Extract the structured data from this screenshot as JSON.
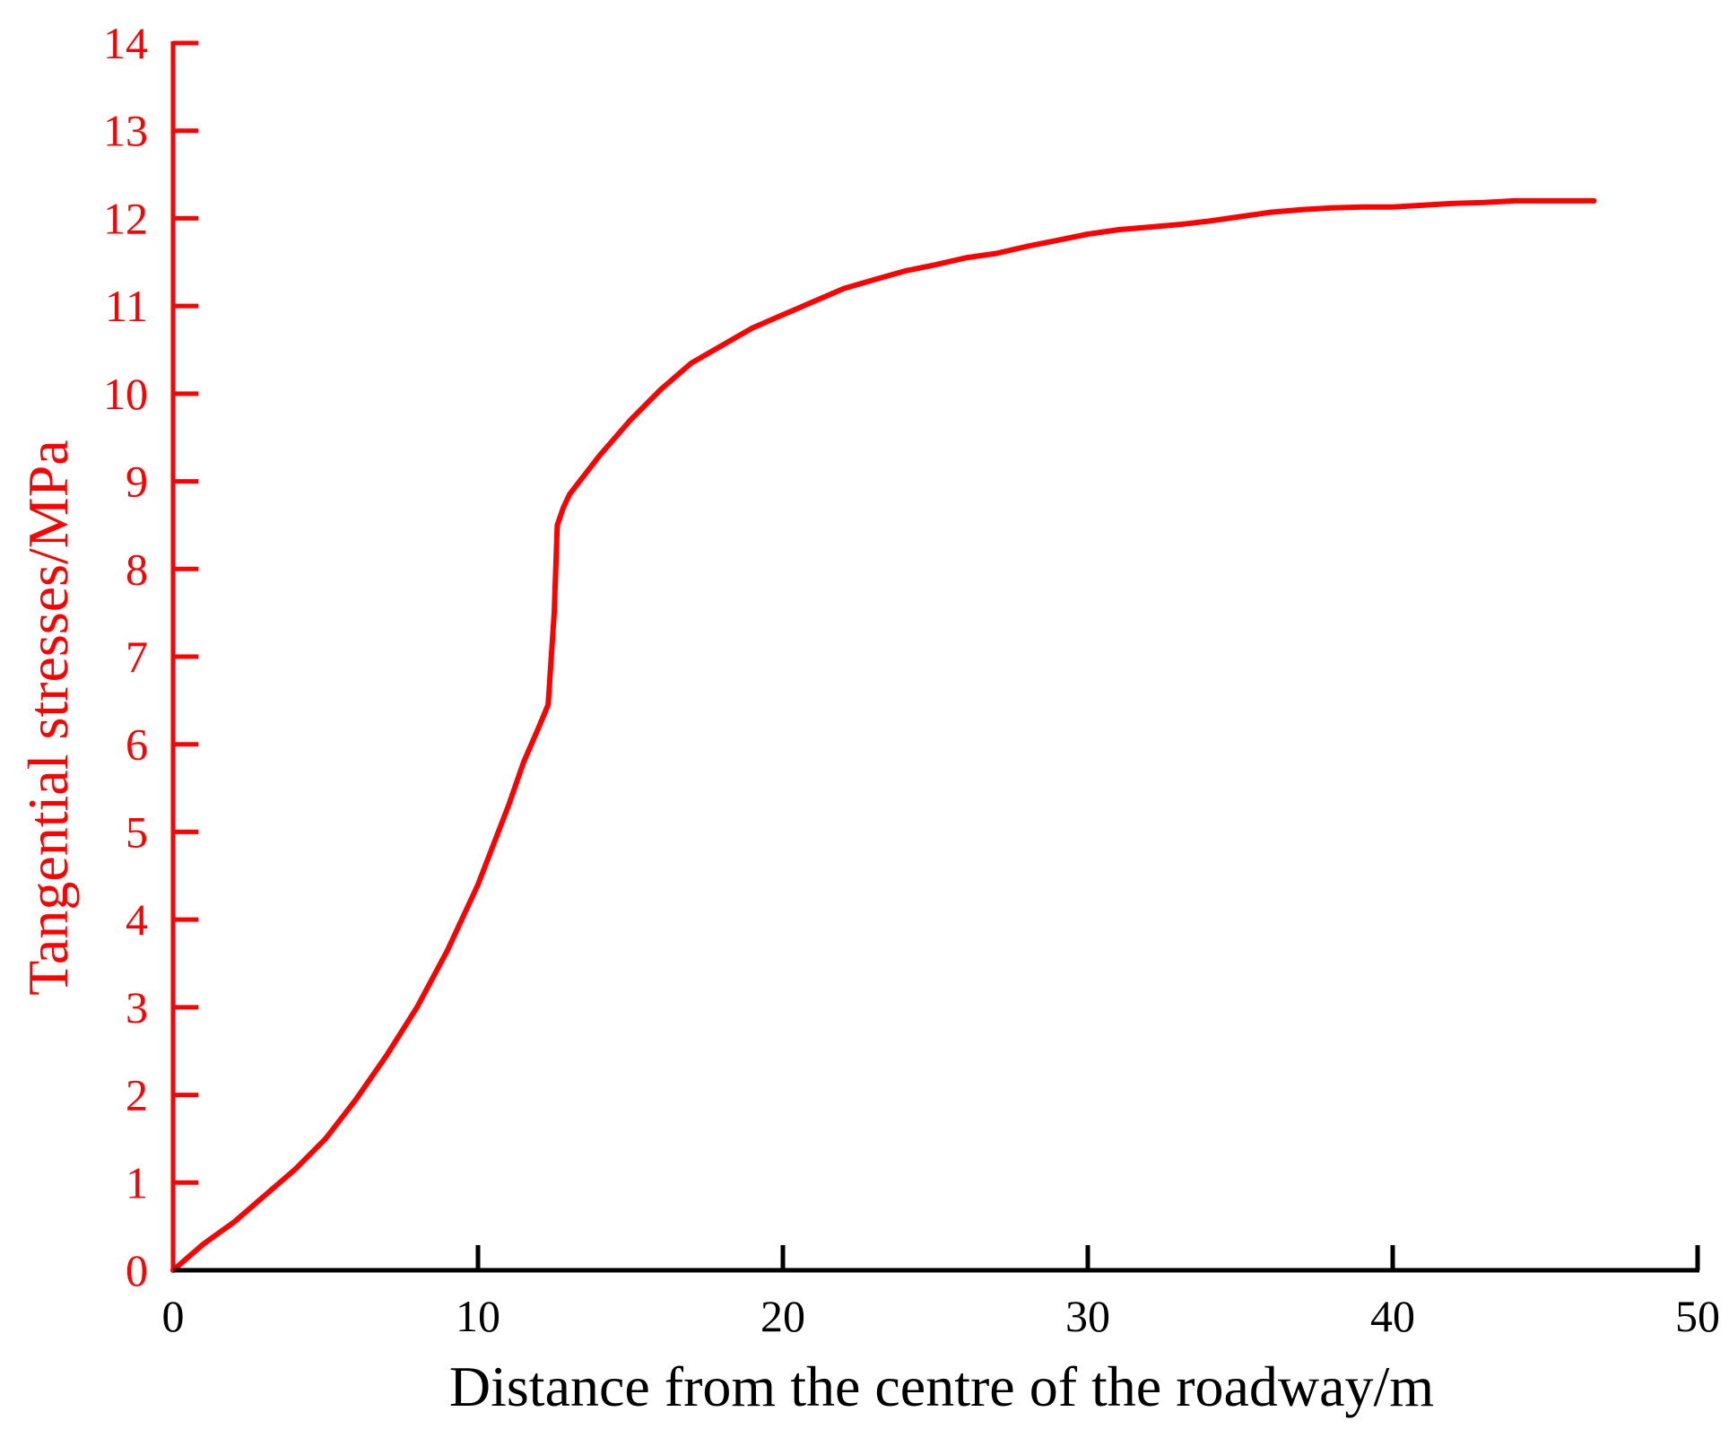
{
  "chart_data": {
    "type": "line",
    "title": "",
    "xlabel": "Distance from the centre of the roadway/m",
    "ylabel": "Tangential stresses/MPa",
    "xlim": [
      0,
      50
    ],
    "ylim": [
      0,
      14
    ],
    "xticks": [
      0,
      10,
      20,
      30,
      40,
      50
    ],
    "yticks": [
      0,
      1,
      2,
      3,
      4,
      5,
      6,
      7,
      8,
      9,
      10,
      11,
      12,
      13,
      14
    ],
    "grid": false,
    "legend": "none",
    "colors": {
      "series": "#ff0000",
      "y_axis": "#ff0000",
      "x_axis": "#000000"
    },
    "series": [
      {
        "x": [
          0,
          0.5,
          1,
          2,
          3,
          4,
          5,
          6,
          7,
          8,
          9,
          10,
          11,
          11.5,
          12,
          12.3,
          12.5,
          12.6,
          12.8,
          13,
          14,
          15,
          16,
          17,
          18,
          19,
          20,
          21,
          22,
          23,
          24,
          25,
          26,
          27,
          28,
          29,
          30,
          31,
          32,
          33,
          34,
          35,
          36,
          37,
          38,
          39,
          40,
          41,
          42,
          43,
          44,
          45,
          46,
          46.6
        ],
        "y": [
          0,
          0.15,
          0.3,
          0.55,
          0.85,
          1.15,
          1.5,
          1.95,
          2.45,
          3.0,
          3.65,
          4.4,
          5.3,
          5.8,
          6.2,
          6.45,
          7.5,
          8.5,
          8.7,
          8.85,
          9.3,
          9.7,
          10.05,
          10.35,
          10.55,
          10.75,
          10.9,
          11.05,
          11.2,
          11.3,
          11.4,
          11.47,
          11.55,
          11.6,
          11.68,
          11.75,
          11.82,
          11.87,
          11.9,
          11.93,
          11.97,
          12.02,
          12.07,
          12.1,
          12.12,
          12.13,
          12.13,
          12.15,
          12.17,
          12.18,
          12.2,
          12.2,
          12.2,
          12.2
        ]
      }
    ]
  }
}
